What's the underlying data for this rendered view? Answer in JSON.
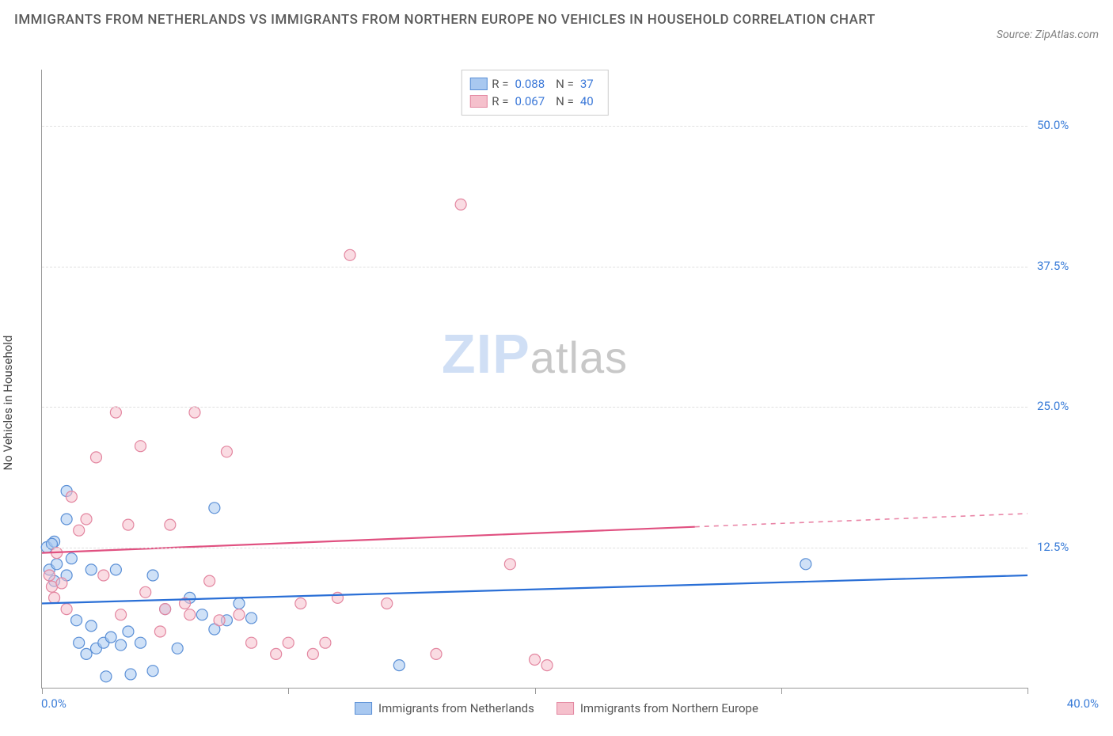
{
  "title": "IMMIGRANTS FROM NETHERLANDS VS IMMIGRANTS FROM NORTHERN EUROPE NO VEHICLES IN HOUSEHOLD CORRELATION CHART",
  "source": "Source: ZipAtlas.com",
  "y_axis_label": "No Vehicles in Household",
  "watermark_a": "ZIP",
  "watermark_b": "atlas",
  "chart": {
    "type": "scatter",
    "xlim": [
      0,
      40
    ],
    "ylim": [
      0,
      55
    ],
    "x_ticks": [
      0,
      10,
      20,
      30,
      40
    ],
    "x_tick_labels": [
      "0.0%",
      "",
      "",
      "",
      "40.0%"
    ],
    "y_grid": [
      12.5,
      25.0,
      37.5,
      50.0
    ],
    "y_grid_labels": [
      "12.5%",
      "25.0%",
      "37.5%",
      "50.0%"
    ],
    "grid_color": "#e0e0e0",
    "axis_color": "#999999",
    "background_color": "#ffffff",
    "series": [
      {
        "name": "Immigrants from Netherlands",
        "fill": "#a8c8f0",
        "stroke": "#5a8fd6",
        "line_color": "#2a6fd6",
        "R": "0.088",
        "N": "37",
        "trend": {
          "y_at_x0": 7.5,
          "y_at_x40": 10.0
        },
        "trend_solid_to_x": 40,
        "points": [
          [
            0.2,
            12.5
          ],
          [
            0.3,
            10.5
          ],
          [
            0.5,
            9.5
          ],
          [
            0.5,
            13.0
          ],
          [
            0.6,
            11.0
          ],
          [
            1.0,
            15.0
          ],
          [
            1.0,
            10.0
          ],
          [
            1.0,
            17.5
          ],
          [
            1.2,
            11.5
          ],
          [
            1.4,
            6.0
          ],
          [
            1.5,
            4.0
          ],
          [
            1.8,
            3.0
          ],
          [
            2.0,
            10.5
          ],
          [
            2.0,
            5.5
          ],
          [
            2.2,
            3.5
          ],
          [
            2.5,
            4.0
          ],
          [
            2.6,
            1.0
          ],
          [
            2.8,
            4.5
          ],
          [
            3.0,
            10.5
          ],
          [
            3.2,
            3.8
          ],
          [
            3.5,
            5.0
          ],
          [
            3.6,
            1.2
          ],
          [
            4.0,
            4.0
          ],
          [
            4.5,
            10.0
          ],
          [
            4.5,
            1.5
          ],
          [
            5.0,
            7.0
          ],
          [
            5.5,
            3.5
          ],
          [
            6.0,
            8.0
          ],
          [
            6.5,
            6.5
          ],
          [
            7.0,
            5.2
          ],
          [
            7.0,
            16.0
          ],
          [
            7.5,
            6.0
          ],
          [
            8.0,
            7.5
          ],
          [
            8.5,
            6.2
          ],
          [
            14.5,
            2.0
          ],
          [
            31.0,
            11.0
          ],
          [
            0.4,
            12.8
          ]
        ]
      },
      {
        "name": "Immigrants from Northern Europe",
        "fill": "#f5c0cc",
        "stroke": "#e386a0",
        "line_color": "#e05080",
        "R": "0.067",
        "N": "40",
        "trend": {
          "y_at_x0": 12.0,
          "y_at_x40": 15.5
        },
        "trend_solid_to_x": 26.5,
        "points": [
          [
            0.3,
            10.0
          ],
          [
            0.4,
            9.0
          ],
          [
            0.5,
            8.0
          ],
          [
            0.6,
            12.0
          ],
          [
            0.8,
            9.3
          ],
          [
            1.0,
            7.0
          ],
          [
            1.2,
            17.0
          ],
          [
            1.5,
            14.0
          ],
          [
            1.8,
            15.0
          ],
          [
            2.2,
            20.5
          ],
          [
            2.5,
            10.0
          ],
          [
            3.0,
            24.5
          ],
          [
            3.2,
            6.5
          ],
          [
            3.5,
            14.5
          ],
          [
            4.0,
            21.5
          ],
          [
            4.2,
            8.5
          ],
          [
            4.8,
            5.0
          ],
          [
            5.0,
            7.0
          ],
          [
            5.2,
            14.5
          ],
          [
            5.8,
            7.5
          ],
          [
            6.0,
            6.5
          ],
          [
            6.2,
            24.5
          ],
          [
            6.8,
            9.5
          ],
          [
            7.2,
            6.0
          ],
          [
            7.5,
            21.0
          ],
          [
            8.0,
            6.5
          ],
          [
            8.5,
            4.0
          ],
          [
            9.5,
            3.0
          ],
          [
            10.0,
            4.0
          ],
          [
            10.5,
            7.5
          ],
          [
            11.0,
            3.0
          ],
          [
            11.5,
            4.0
          ],
          [
            12.0,
            8.0
          ],
          [
            12.5,
            38.5
          ],
          [
            14.0,
            7.5
          ],
          [
            16.0,
            3.0
          ],
          [
            17.0,
            43.0
          ],
          [
            19.0,
            11.0
          ],
          [
            20.0,
            2.5
          ],
          [
            20.5,
            2.0
          ]
        ]
      }
    ],
    "bottom_legend": [
      "Immigrants from Netherlands",
      "Immigrants from Northern Europe"
    ]
  }
}
